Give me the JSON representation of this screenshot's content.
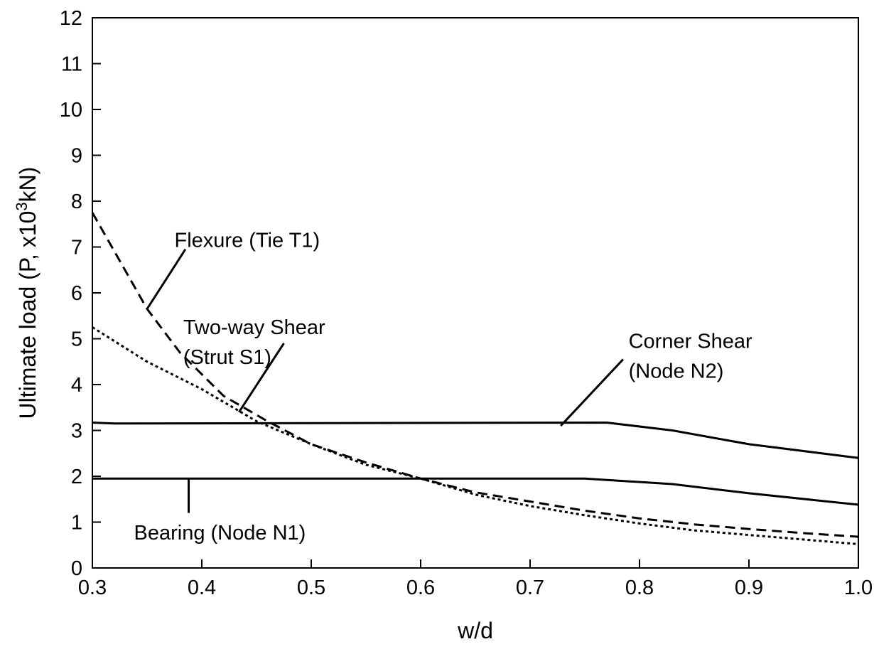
{
  "chart_data": {
    "type": "line",
    "title": "",
    "xlabel": "w/d",
    "ylabel_main": "Ultimate load (P, x10",
    "ylabel_sup": "3",
    "ylabel_end": "kN)",
    "xlim": [
      0.3,
      1.0
    ],
    "ylim": [
      0,
      12
    ],
    "xticks": [
      0.3,
      0.4,
      0.5,
      0.6,
      0.7,
      0.8,
      0.9,
      1.0
    ],
    "xtick_labels": [
      "0.3",
      "0.4",
      "0.5",
      "0.6",
      "0.7",
      "0.8",
      "0.9",
      "1.0"
    ],
    "yticks": [
      0,
      1,
      2,
      3,
      4,
      5,
      6,
      7,
      8,
      9,
      10,
      11,
      12
    ],
    "ytick_labels": [
      "0",
      "1",
      "2",
      "3",
      "4",
      "5",
      "6",
      "7",
      "8",
      "9",
      "10",
      "11",
      "12"
    ],
    "grid": false,
    "series": [
      {
        "id": "flexure",
        "style": "dashed",
        "x": [
          0.3,
          0.35,
          0.38,
          0.42,
          0.46,
          0.5,
          0.55,
          0.6,
          0.65,
          0.7,
          0.75,
          0.8,
          0.85,
          0.9,
          0.95,
          1.0
        ],
        "y": [
          7.75,
          5.65,
          4.7,
          3.75,
          3.2,
          2.7,
          2.3,
          1.95,
          1.65,
          1.45,
          1.25,
          1.08,
          0.95,
          0.85,
          0.76,
          0.68
        ]
      },
      {
        "id": "two-way-shear",
        "style": "dotted",
        "x": [
          0.3,
          0.35,
          0.4,
          0.45,
          0.5,
          0.55,
          0.6,
          0.65,
          0.7,
          0.75,
          0.8,
          0.85,
          0.9,
          0.95,
          1.0
        ],
        "y": [
          5.25,
          4.5,
          3.9,
          3.2,
          2.7,
          2.25,
          1.95,
          1.6,
          1.35,
          1.15,
          0.97,
          0.82,
          0.72,
          0.62,
          0.52
        ]
      },
      {
        "id": "corner-shear",
        "style": "solid",
        "x": [
          0.3,
          0.32,
          0.77,
          0.83,
          0.9,
          1.0
        ],
        "y": [
          3.17,
          3.15,
          3.17,
          3.0,
          2.7,
          2.4
        ]
      },
      {
        "id": "bearing",
        "style": "solid",
        "x": [
          0.3,
          0.75,
          0.83,
          0.9,
          1.0
        ],
        "y": [
          1.95,
          1.95,
          1.83,
          1.63,
          1.38
        ]
      }
    ],
    "annotations": [
      {
        "id": "flexure-label",
        "text": "Flexure (Tie T1)",
        "tx": 0.375,
        "ty": 7.0,
        "lx1": 0.35,
        "ly1": 5.65,
        "lx2": 0.385,
        "ly2": 6.95
      },
      {
        "id": "two-way-label-1",
        "text": "Two-way Shear",
        "tx": 0.383,
        "ty": 5.1
      },
      {
        "id": "two-way-label-2",
        "text": "(Strut S1)",
        "tx": 0.383,
        "ty": 4.45,
        "lx1": 0.434,
        "ly1": 3.4,
        "lx2": 0.475,
        "ly2": 4.9
      },
      {
        "id": "corner-label-1",
        "text": "Corner Shear",
        "tx": 0.79,
        "ty": 4.8
      },
      {
        "id": "corner-label-2",
        "text": "(Node N2)",
        "tx": 0.79,
        "ty": 4.15,
        "lx1": 0.728,
        "ly1": 3.1,
        "lx2": 0.785,
        "ly2": 4.55
      },
      {
        "id": "bearing-label",
        "text": "Bearing (Node N1)",
        "tx": 0.338,
        "ty": 0.62,
        "lx1": 0.388,
        "ly1": 1.95,
        "lx2": 0.388,
        "ly2": 1.2
      }
    ]
  }
}
